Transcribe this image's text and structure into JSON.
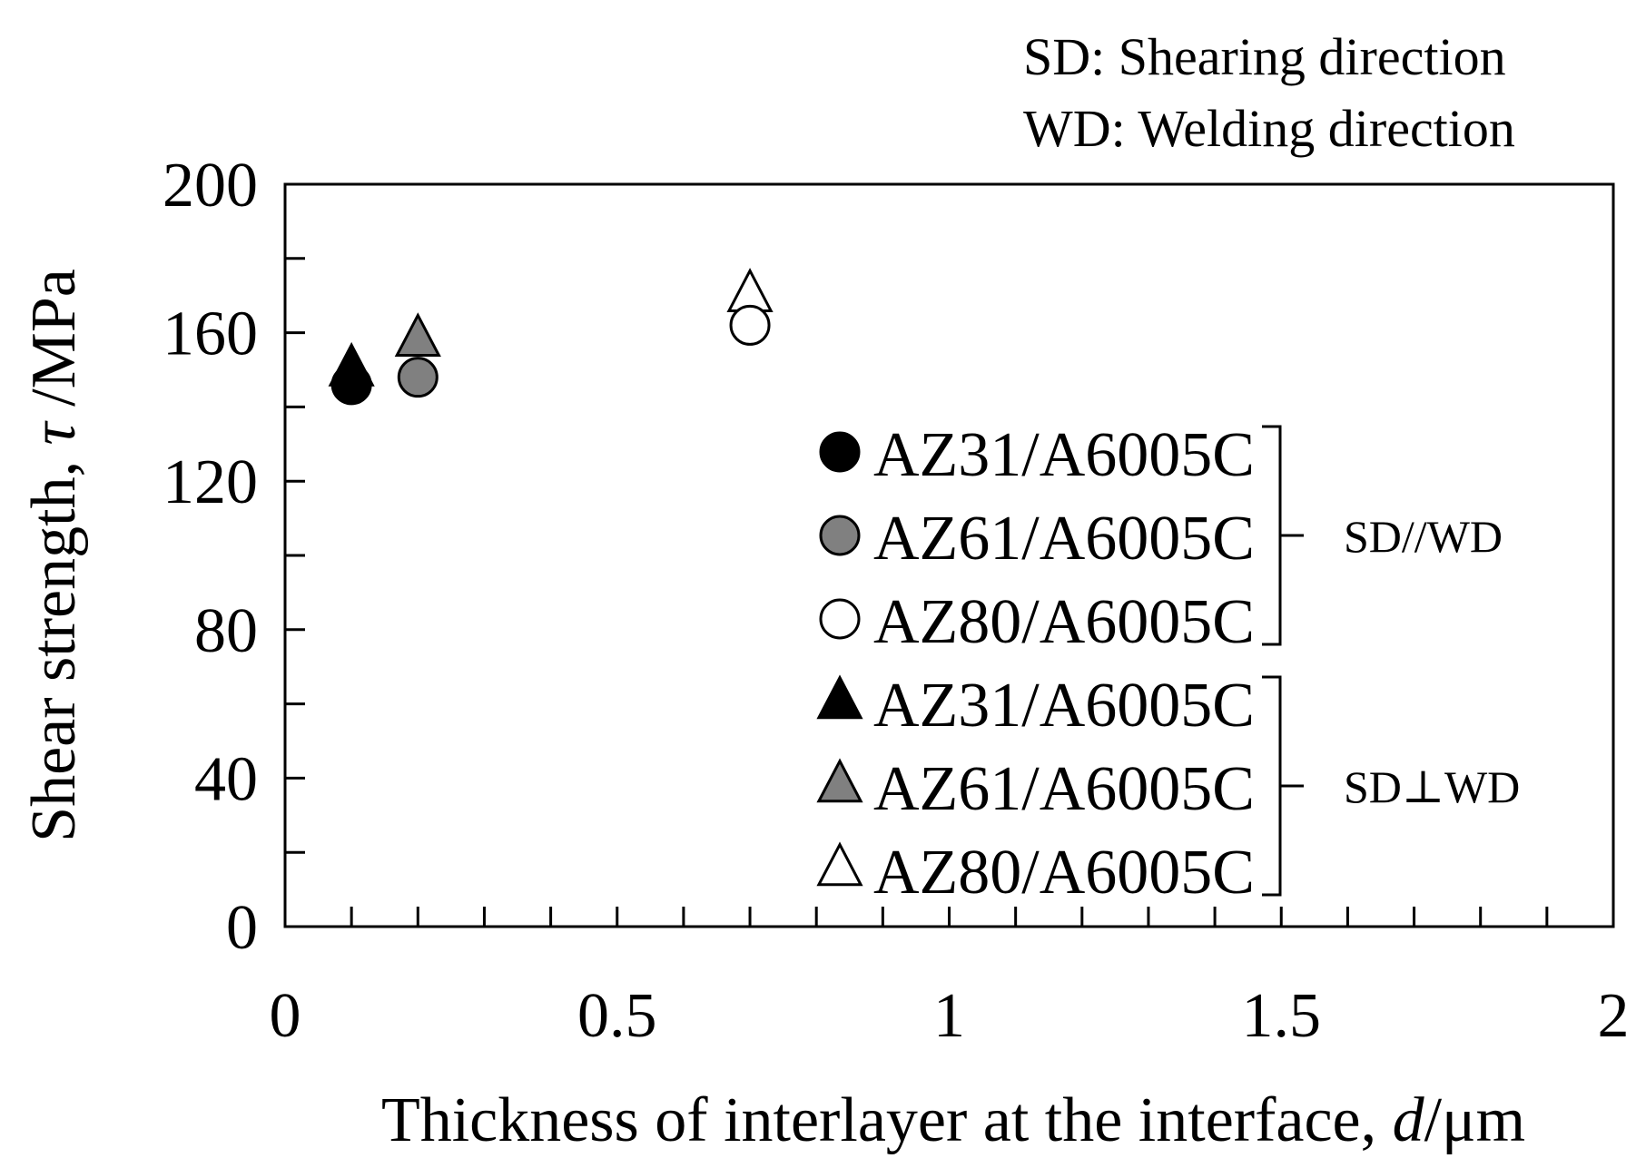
{
  "notes": [
    "SD: Shearing direction",
    "WD: Welding direction"
  ],
  "chart_data": {
    "type": "scatter",
    "xlabel": "Thickness of interlayer at the interface,",
    "xlabel_symbol": "d",
    "xlabel_unit": "/μm",
    "ylabel": "Shear strength,",
    "ylabel_symbol": "τ",
    "ylabel_unit": " /MPa",
    "xlim": [
      0,
      2
    ],
    "ylim": [
      0,
      200
    ],
    "x_ticks": [
      0,
      0.5,
      1,
      1.5,
      2
    ],
    "x_tick_labels": [
      "0",
      "0.5",
      "1",
      "1.5",
      "2"
    ],
    "x_minor_step": 0.1,
    "y_ticks": [
      0,
      40,
      80,
      120,
      160,
      200
    ],
    "y_tick_labels": [
      "0",
      "40",
      "80",
      "120",
      "160",
      "200"
    ],
    "y_minor_step": 20,
    "grid": false,
    "legend_position": "right-center",
    "series": [
      {
        "name": "AZ31/A6005C",
        "group": "SD//WD",
        "marker": "circle",
        "fill": "#000000",
        "points": [
          {
            "x": 0.1,
            "y": 146
          }
        ]
      },
      {
        "name": "AZ61/A6005C",
        "group": "SD//WD",
        "marker": "circle",
        "fill": "#808080",
        "points": [
          {
            "x": 0.2,
            "y": 148
          }
        ]
      },
      {
        "name": "AZ80/A6005C",
        "group": "SD//WD",
        "marker": "circle",
        "fill": "#ffffff",
        "points": [
          {
            "x": 0.7,
            "y": 162
          }
        ]
      },
      {
        "name": "AZ31/A6005C",
        "group": "SD⊥WD",
        "marker": "triangle",
        "fill": "#000000",
        "points": [
          {
            "x": 0.1,
            "y": 150
          }
        ]
      },
      {
        "name": "AZ61/A6005C",
        "group": "SD⊥WD",
        "marker": "triangle",
        "fill": "#808080",
        "points": [
          {
            "x": 0.2,
            "y": 158
          }
        ]
      },
      {
        "name": "AZ80/A6005C",
        "group": "SD⊥WD",
        "marker": "triangle",
        "fill": "#ffffff",
        "points": [
          {
            "x": 0.7,
            "y": 170
          }
        ]
      }
    ],
    "legend_groups": [
      "SD//WD",
      "SD⊥WD"
    ]
  }
}
